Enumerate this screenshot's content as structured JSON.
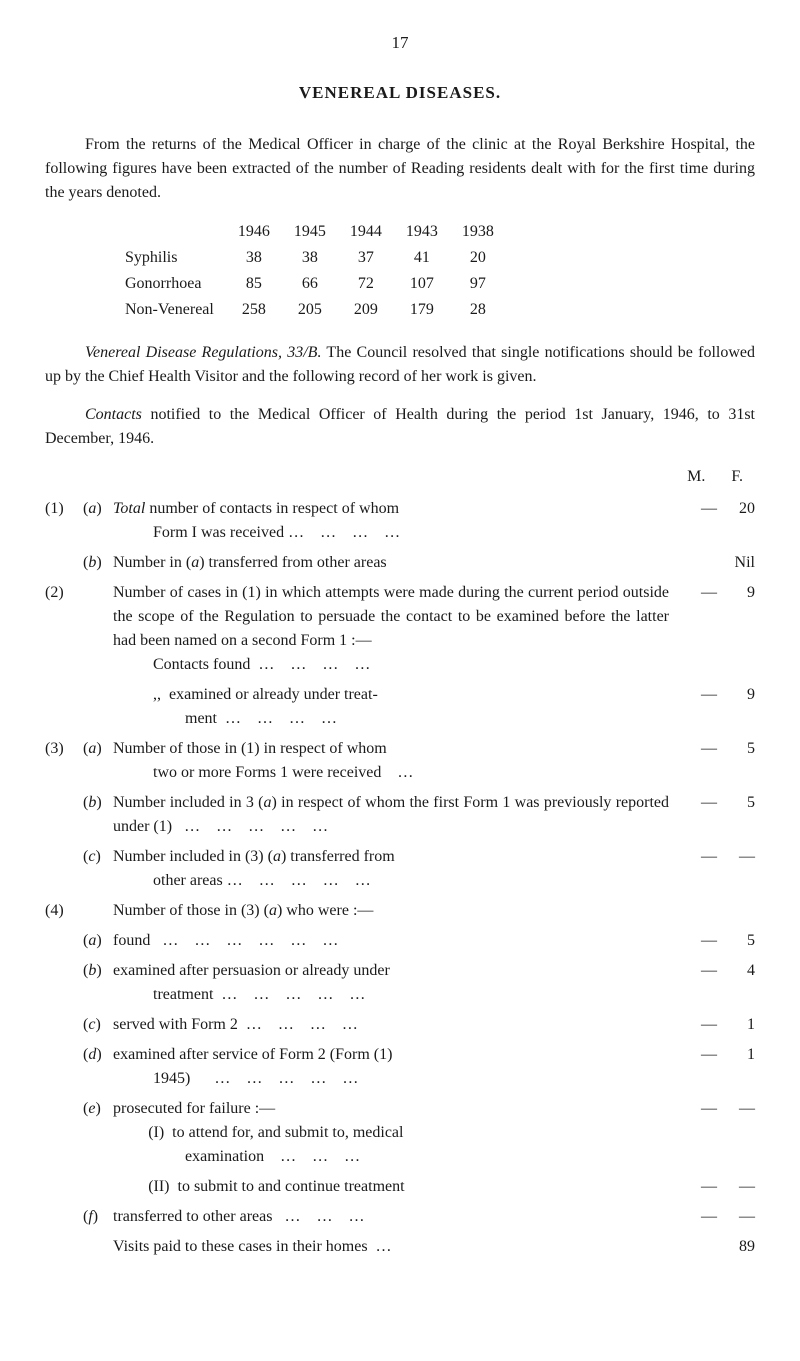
{
  "page_number": "17",
  "title": "VENEREAL DISEASES.",
  "intro": "From the returns of the Medical Officer in charge of the clinic at the Royal Berkshire Hospital, the following figures have been extracted of the number of Reading residents dealt with for the first time during the years denoted.",
  "year_table": {
    "years": [
      "1946",
      "1945",
      "1944",
      "1943",
      "1938"
    ],
    "rows": [
      {
        "label": "Syphilis",
        "values": [
          "38",
          "38",
          "37",
          "41",
          "20"
        ]
      },
      {
        "label": "Gonorrhoea",
        "values": [
          "85",
          "66",
          "72",
          "107",
          "97"
        ]
      },
      {
        "label": "Non-Venereal",
        "values": [
          "258",
          "205",
          "209",
          "179",
          "28"
        ]
      }
    ]
  },
  "resolution": {
    "prefix": "Venereal Disease Regulations, 33/B.",
    "text": "  The Council resolved that single notifications should be followed up by the Chief Health Visitor and the following record of her work is given."
  },
  "contacts_intro": {
    "prefix": "Contacts",
    "text": " notified to the Medical Officer of Health during the period 1st January, 1946, to 31st December, 1946."
  },
  "mf_header": {
    "m": "M.",
    "f": "F."
  },
  "items": [
    {
      "num": "(1)",
      "rows": [
        {
          "letter": "a",
          "desc_html": "<span class='italic'>Total</span> number of contacts in respect of whom<span class='sub-indent'>Form I was received …&nbsp;&nbsp;&nbsp;&nbsp;…&nbsp;&nbsp;&nbsp;&nbsp;…&nbsp;&nbsp;&nbsp;&nbsp;…</span>",
          "m": "—",
          "f": "20"
        },
        {
          "letter": "b",
          "desc_html": "Number in (<span class='italic'>a</span>) transferred from other areas",
          "m": "",
          "f": "Nil"
        }
      ]
    },
    {
      "num": "(2)",
      "rows": [
        {
          "letter": "",
          "desc_html": "Number of cases in (1) in which attempts were made during the current period out­side the scope of the Regulation to persuade the contact to be examined before the latter had been named on a second Form 1 :—<span class='sub-indent'>Contacts found&nbsp;&nbsp;…&nbsp;&nbsp;&nbsp;&nbsp;…&nbsp;&nbsp;&nbsp;&nbsp;…&nbsp;&nbsp;&nbsp;&nbsp;…</span>",
          "m": "—",
          "f": "9"
        },
        {
          "letter": "",
          "desc_html": "<span class='sub-indent'>,,&nbsp;&nbsp;examined or already under treat-</span><span class='sub-indent-more'>ment&nbsp;&nbsp;…&nbsp;&nbsp;&nbsp;&nbsp;…&nbsp;&nbsp;&nbsp;&nbsp;…&nbsp;&nbsp;&nbsp;&nbsp;…</span>",
          "m": "—",
          "f": "9"
        }
      ]
    },
    {
      "num": "(3)",
      "rows": [
        {
          "letter": "a",
          "desc_html": "Number of those in (1) in respect of whom<span class='sub-indent'>two or more Forms 1 were received&nbsp;&nbsp;&nbsp;&nbsp;…</span>",
          "m": "—",
          "f": "5"
        },
        {
          "letter": "b",
          "desc_html": "Number included in 3 (<span class='italic'>a</span>) in respect of whom the first Form 1 was previously reported under (1)&nbsp;&nbsp;&nbsp;…&nbsp;&nbsp;&nbsp;&nbsp;…&nbsp;&nbsp;&nbsp;&nbsp;…&nbsp;&nbsp;&nbsp;&nbsp;…&nbsp;&nbsp;&nbsp;&nbsp;…",
          "m": "—",
          "f": "5"
        },
        {
          "letter": "c",
          "desc_html": "Number included in (3) (<span class='italic'>a</span>) transferred from<span class='sub-indent'>other areas …&nbsp;&nbsp;&nbsp;&nbsp;…&nbsp;&nbsp;&nbsp;&nbsp;…&nbsp;&nbsp;&nbsp;&nbsp;…&nbsp;&nbsp;&nbsp;&nbsp;…</span>",
          "m": "—",
          "f": "—"
        }
      ]
    },
    {
      "num": "(4)",
      "rows": [
        {
          "letter": "",
          "desc_html": "Number of those in (3) (<span class='italic'>a</span>) who were :—",
          "m": "",
          "f": ""
        },
        {
          "letter": "a",
          "desc_html": "found&nbsp;&nbsp;&nbsp;…&nbsp;&nbsp;&nbsp;&nbsp;…&nbsp;&nbsp;&nbsp;&nbsp;…&nbsp;&nbsp;&nbsp;&nbsp;…&nbsp;&nbsp;&nbsp;&nbsp;…&nbsp;&nbsp;&nbsp;&nbsp;…",
          "m": "—",
          "f": "5"
        },
        {
          "letter": "b",
          "desc_html": "examined after persuasion or already under<span class='sub-indent'>treatment&nbsp;&nbsp;…&nbsp;&nbsp;&nbsp;&nbsp;…&nbsp;&nbsp;&nbsp;&nbsp;…&nbsp;&nbsp;&nbsp;&nbsp;…&nbsp;&nbsp;&nbsp;&nbsp;…</span>",
          "m": "—",
          "f": "4"
        },
        {
          "letter": "c",
          "desc_html": "served with Form 2&nbsp;&nbsp;…&nbsp;&nbsp;&nbsp;&nbsp;…&nbsp;&nbsp;&nbsp;&nbsp;…&nbsp;&nbsp;&nbsp;&nbsp;…",
          "m": "—",
          "f": "1"
        },
        {
          "letter": "d",
          "desc_html": "examined after service of Form 2 (Form (1)<span class='sub-indent'>1945)&nbsp;&nbsp;&nbsp;&nbsp;&nbsp;&nbsp;…&nbsp;&nbsp;&nbsp;&nbsp;…&nbsp;&nbsp;&nbsp;&nbsp;…&nbsp;&nbsp;&nbsp;&nbsp;…&nbsp;&nbsp;&nbsp;&nbsp;…</span>",
          "m": "—",
          "f": "1"
        },
        {
          "letter": "e",
          "desc_html": "prosecuted for failure :—<span class='sub-indent-roman'>(I)&nbsp;&nbsp;to attend for, and submit to, medical</span><span class='sub-indent-more'>examination&nbsp;&nbsp;&nbsp;&nbsp;…&nbsp;&nbsp;&nbsp;&nbsp;…&nbsp;&nbsp;&nbsp;&nbsp;…</span>",
          "m": "—",
          "f": "—"
        },
        {
          "letter": "",
          "desc_html": "<span class='sub-indent-roman'>(II)&nbsp;&nbsp;to submit to and continue treatment</span>",
          "m": "—",
          "f": "—"
        },
        {
          "letter": "f",
          "desc_html": "transferred to other areas&nbsp;&nbsp;&nbsp;…&nbsp;&nbsp;&nbsp;&nbsp;…&nbsp;&nbsp;&nbsp;&nbsp;…",
          "m": "—",
          "f": "—"
        },
        {
          "letter": "",
          "desc_html": "Visits paid to these cases in their homes&nbsp;&nbsp;…",
          "m": "",
          "f": "89"
        }
      ]
    }
  ]
}
